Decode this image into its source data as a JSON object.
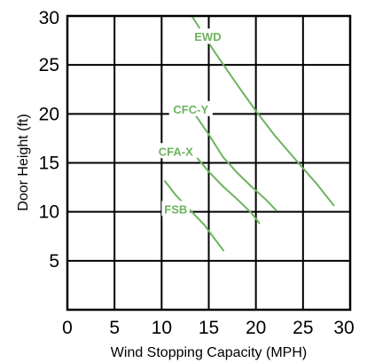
{
  "chart_data": {
    "type": "line",
    "title": "",
    "xlabel": "Wind Stopping Capacity (MPH)",
    "ylabel": "Door Height (ft)",
    "xlim": [
      0,
      30
    ],
    "ylim": [
      0,
      30
    ],
    "xticks": [
      "0",
      "5",
      "10",
      "15",
      "20",
      "25",
      "30"
    ],
    "yticks": [
      "5",
      "10",
      "15",
      "20",
      "25",
      "30"
    ],
    "grid": true,
    "color": "#6db35f",
    "series": [
      {
        "name": "EWD",
        "label_at": [
          14.9,
          27.9
        ],
        "x": [
          13.2,
          15.5,
          18.0,
          20.0,
          22.0,
          24.5,
          26.5,
          28.3
        ],
        "y": [
          30,
          26.5,
          23,
          20.3,
          17.8,
          15.0,
          12.8,
          10.6
        ]
      },
      {
        "name": "CFC-Y",
        "label_at": [
          13.1,
          20.5
        ],
        "x": [
          13.5,
          15.0,
          16.5,
          18.0,
          19.5,
          21.0,
          22.2
        ],
        "y": [
          20.0,
          17.9,
          15.6,
          14.0,
          12.6,
          11.3,
          10.1
        ]
      },
      {
        "name": "CFA-X",
        "label_at": [
          11.5,
          16.2
        ],
        "x": [
          13.5,
          15.0,
          16.5,
          18.0,
          19.5,
          20.4
        ],
        "y": [
          15.8,
          14.1,
          12.6,
          11.3,
          9.9,
          8.8
        ]
      },
      {
        "name": "FSB",
        "label_at": [
          11.5,
          10.3
        ],
        "x": [
          10.3,
          11.5,
          13.0,
          14.5,
          15.5,
          16.6
        ],
        "y": [
          13.2,
          11.7,
          10.2,
          8.7,
          7.4,
          6.0
        ]
      }
    ]
  }
}
